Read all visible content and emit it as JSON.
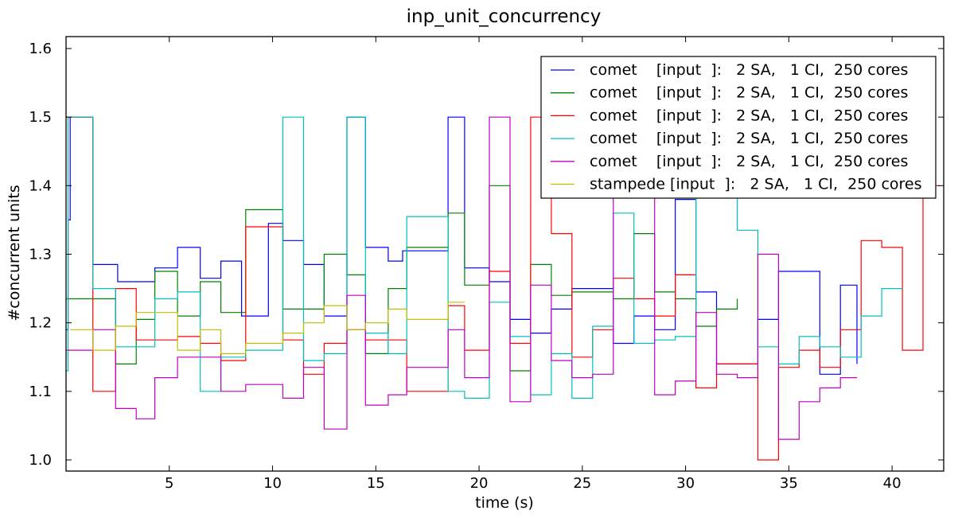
{
  "chart_data": {
    "type": "line",
    "step": "post",
    "title": "inp_unit_concurrency",
    "xlabel": "time (s)",
    "ylabel": "#concurrent units",
    "xlim": [
      0,
      42.5
    ],
    "ylim": [
      1.0,
      1.6
    ],
    "x_ticks": [
      5,
      10,
      15,
      20,
      25,
      30,
      35,
      40
    ],
    "y_ticks": [
      1.0,
      1.1,
      1.2,
      1.3,
      1.4,
      1.5,
      1.6
    ],
    "x_tick_labels": [
      "5",
      "10",
      "15",
      "20",
      "25",
      "30",
      "35",
      "40"
    ],
    "y_tick_labels": [
      "1.0",
      "1.1",
      "1.2",
      "1.3",
      "1.4",
      "1.5",
      "1.6"
    ],
    "grid": false,
    "legend_position": "top-right",
    "series": [
      {
        "name": "comet    [input  ]:   2 SA,   1 CI,  250 cores",
        "color": "#0000ff",
        "x": [
          0,
          0.1,
          0.2,
          0.5,
          1.3,
          2.5,
          3.5,
          4.3,
          5.4,
          6.5,
          7.5,
          8.5,
          9.8,
          10.5,
          11.5,
          12.5,
          13.6,
          14.5,
          15.6,
          16.3,
          18.5,
          19.3,
          20.5,
          21.5,
          22.5,
          23.5,
          24.5,
          26.5,
          27.5,
          28.5,
          29.5,
          30.5,
          31.5,
          32.5,
          33.5,
          34.5,
          35.5,
          36.5,
          37.5,
          38.3
        ],
        "y": [
          1.19,
          1.35,
          1.5,
          1.5,
          1.285,
          1.26,
          1.26,
          1.28,
          1.31,
          1.265,
          1.29,
          1.21,
          1.345,
          1.32,
          1.285,
          1.21,
          1.5,
          1.31,
          1.29,
          1.305,
          1.5,
          1.28,
          1.26,
          1.205,
          1.185,
          1.22,
          1.25,
          1.17,
          1.21,
          1.19,
          1.38,
          1.245,
          1.14,
          1.14,
          1.205,
          1.275,
          1.275,
          1.125,
          1.255,
          1.14
        ]
      },
      {
        "name": "comet    [input  ]:   2 SA,   1 CI,  250 cores",
        "color": "#008000",
        "x": [
          0,
          1.3,
          2.4,
          3.4,
          4.3,
          5.4,
          6.5,
          7.5,
          8.7,
          10.5,
          11.5,
          12.5,
          13.6,
          14.5,
          15.6,
          16.5,
          18.5,
          19.3,
          20.5,
          21.5,
          22.5,
          23.5,
          24.5,
          25.5,
          26.5,
          27.5,
          28.5,
          29.5,
          30.5,
          31.5,
          32.5
        ],
        "y": [
          1.235,
          1.235,
          1.14,
          1.205,
          1.275,
          1.21,
          1.26,
          1.215,
          1.365,
          1.22,
          1.22,
          1.3,
          1.27,
          1.155,
          1.25,
          1.31,
          1.36,
          1.255,
          1.4,
          1.13,
          1.285,
          1.24,
          1.245,
          1.245,
          1.235,
          1.33,
          1.245,
          1.235,
          1.195,
          1.22,
          1.235
        ]
      },
      {
        "name": "comet    [input  ]:   2 SA,   1 CI,  250 cores",
        "color": "#ff0000",
        "x": [
          0,
          1.3,
          2.4,
          3.4,
          4.3,
          5.4,
          6.5,
          7.5,
          8.7,
          10.5,
          11.5,
          12.5,
          13.6,
          14.5,
          15.6,
          16.5,
          18.5,
          19.3,
          20.5,
          21.5,
          22.5,
          23.5,
          24.5,
          25.5,
          26.5,
          27.5,
          28.5,
          29.5,
          30.5,
          31.5,
          33.5,
          34.5,
          35.5,
          36.5,
          37.5,
          38.5,
          39.5,
          40.5,
          41.5,
          42.3
        ],
        "y": [
          1.5,
          1.1,
          1.25,
          1.175,
          1.175,
          1.18,
          1.17,
          1.145,
          1.34,
          1.175,
          1.125,
          1.17,
          1.19,
          1.175,
          1.175,
          1.1,
          1.225,
          1.16,
          1.275,
          1.17,
          1.5,
          1.33,
          1.15,
          1.19,
          1.265,
          1.235,
          1.21,
          1.27,
          1.105,
          1.14,
          1.0,
          1.135,
          1.16,
          1.135,
          1.19,
          1.32,
          1.31,
          1.16,
          1.4,
          1.4
        ]
      },
      {
        "name": "comet    [input  ]:   2 SA,   1 CI,  250 cores",
        "color": "#00bfbf",
        "x": [
          0,
          0.1,
          1.3,
          2.4,
          3.4,
          4.3,
          5.4,
          6.5,
          7.5,
          8.7,
          10.5,
          11.5,
          12.5,
          13.6,
          14.5,
          15.6,
          16.5,
          18.5,
          19.3,
          20.5,
          21.5,
          22.5,
          23.5,
          24.5,
          25.5,
          26.5,
          27.5,
          28.5,
          29.5,
          30.5,
          31.5,
          32.5,
          33.5,
          34.5,
          35.5,
          36.5,
          37.5,
          38.5,
          39.5,
          40.5
        ],
        "y": [
          1.13,
          1.5,
          1.25,
          1.165,
          1.165,
          1.235,
          1.245,
          1.1,
          1.15,
          1.16,
          1.5,
          1.145,
          1.155,
          1.5,
          1.185,
          1.155,
          1.355,
          1.1,
          1.09,
          1.23,
          1.18,
          1.095,
          1.155,
          1.09,
          1.195,
          1.36,
          1.17,
          1.175,
          1.18,
          1.4,
          1.4,
          1.335,
          1.165,
          1.14,
          1.18,
          1.165,
          1.15,
          1.21,
          1.25,
          1.25
        ]
      },
      {
        "name": "comet    [input  ]:   2 SA,   1 CI,  250 cores",
        "color": "#bf00bf",
        "x": [
          0,
          1.3,
          2.4,
          3.4,
          4.3,
          5.4,
          6.5,
          7.5,
          8.7,
          10.5,
          11.5,
          12.5,
          13.6,
          14.5,
          15.6,
          16.5,
          18.5,
          19.3,
          20.5,
          21.5,
          22.5,
          23.5,
          24.5,
          25.5,
          26.5,
          27.5,
          28.5,
          29.5,
          30.5,
          31.5,
          32.5,
          33.5,
          34.5,
          35.5,
          36.5,
          37.5,
          38.3
        ],
        "y": [
          1.16,
          1.19,
          1.075,
          1.06,
          1.12,
          1.15,
          1.15,
          1.1,
          1.11,
          1.09,
          1.135,
          1.045,
          1.24,
          1.08,
          1.095,
          1.135,
          1.19,
          1.12,
          1.5,
          1.085,
          1.255,
          1.145,
          1.12,
          1.125,
          1.4,
          1.4,
          1.095,
          1.115,
          1.215,
          1.125,
          1.12,
          1.3,
          1.03,
          1.085,
          1.105,
          1.12,
          1.12
        ]
      },
      {
        "name": "stampede [input  ]:   2 SA,   1 CI,  250 cores",
        "color": "#bfbf00",
        "x": [
          0.2,
          1.3,
          2.4,
          3.4,
          4.3,
          5.4,
          6.5,
          7.5,
          8.7,
          10.5,
          11.5,
          12.5,
          13.6,
          14.5,
          15.6,
          16.5,
          18.5,
          19.3
        ],
        "y": [
          1.19,
          1.16,
          1.195,
          1.215,
          1.215,
          1.16,
          1.19,
          1.155,
          1.17,
          1.185,
          1.2,
          1.225,
          1.19,
          1.2,
          1.22,
          1.205,
          1.23,
          1.23
        ]
      }
    ]
  }
}
